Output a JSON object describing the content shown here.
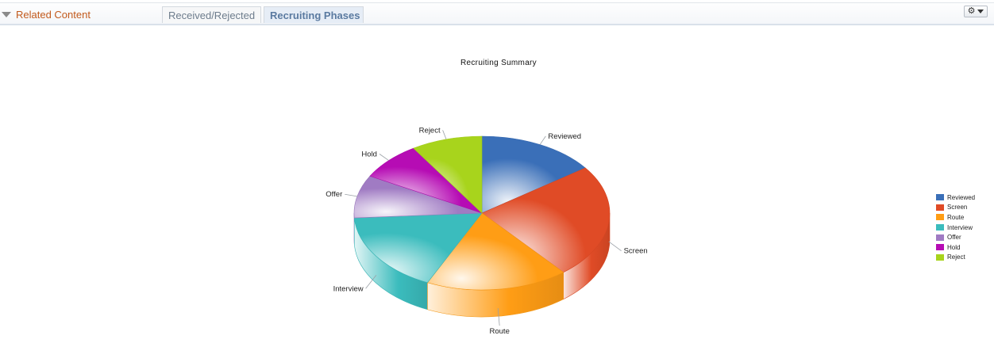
{
  "header": {
    "related_label": "Related Content",
    "tabs": [
      {
        "label": "Received/Rejected",
        "active": false
      },
      {
        "label": "Recruiting Phases",
        "active": true
      }
    ],
    "gear_icon": "gear-icon",
    "dropdown_icon": "chevron-down-icon"
  },
  "chart_data": {
    "type": "pie",
    "title": "Recruiting Summary",
    "style": "3d",
    "legend_position": "right",
    "slices": [
      {
        "label": "Reviewed",
        "value": 15,
        "color": "#3a6fb8"
      },
      {
        "label": "Screen",
        "value": 24,
        "color": "#e04b26"
      },
      {
        "label": "Route",
        "value": 18,
        "color": "#ff9d15"
      },
      {
        "label": "Interview",
        "value": 17,
        "color": "#3bbcbd"
      },
      {
        "label": "Offer",
        "value": 9,
        "color": "#a07bc3"
      },
      {
        "label": "Hold",
        "value": 8,
        "color": "#b60cb4"
      },
      {
        "label": "Reject",
        "value": 9,
        "color": "#a8d41c"
      }
    ]
  }
}
